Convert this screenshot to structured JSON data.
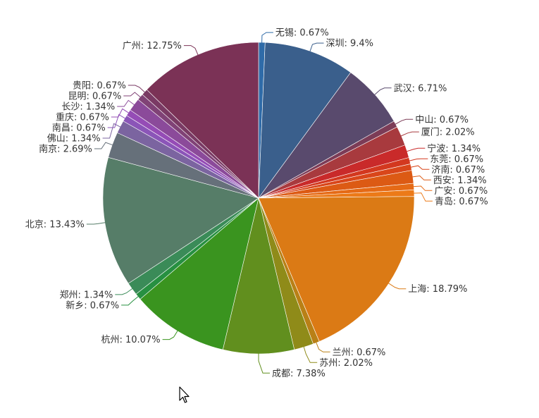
{
  "chart_data": {
    "type": "pie",
    "title": "",
    "start": "top",
    "direction": "clockwise",
    "slices": [
      {
        "name": "无锡",
        "value": 0.67,
        "label": "无锡: 0.67%",
        "color": "#2f6ba8"
      },
      {
        "name": "深圳",
        "value": 9.4,
        "label": "深圳: 9.4%",
        "color": "#3a5f8c"
      },
      {
        "name": "武汉",
        "value": 6.71,
        "label": "武汉: 6.71%",
        "color": "#594a6d"
      },
      {
        "name": "中山",
        "value": 0.67,
        "label": "中山: 0.67%",
        "color": "#7c3c57"
      },
      {
        "name": "厦门",
        "value": 2.02,
        "label": "厦门: 2.02%",
        "color": "#a83a3e"
      },
      {
        "name": "宁波",
        "value": 1.34,
        "label": "宁波: 1.34%",
        "color": "#c92a2a"
      },
      {
        "name": "东莞",
        "value": 0.67,
        "label": "东莞: 0.67%",
        "color": "#d3381f"
      },
      {
        "name": "济南",
        "value": 0.67,
        "label": "济南: 0.67%",
        "color": "#d9461a"
      },
      {
        "name": "西安",
        "value": 1.34,
        "label": "西安: 1.34%",
        "color": "#dc5a14"
      },
      {
        "name": "广安",
        "value": 0.67,
        "label": "广安: 0.67%",
        "color": "#e56a16"
      },
      {
        "name": "青岛",
        "value": 0.67,
        "label": "青岛: 0.67%",
        "color": "#ec7a18"
      },
      {
        "name": "上海",
        "value": 18.79,
        "label": "上海: 18.79%",
        "color": "#db7a15"
      },
      {
        "name": "兰州",
        "value": 0.67,
        "label": "兰州: 0.67%",
        "color": "#b98016"
      },
      {
        "name": "苏州",
        "value": 2.02,
        "label": "苏州: 2.02%",
        "color": "#8f8b19"
      },
      {
        "name": "成都",
        "value": 7.38,
        "label": "成都: 7.38%",
        "color": "#618f1e"
      },
      {
        "name": "杭州",
        "value": 10.07,
        "label": "杭州: 10.07%",
        "color": "#3a941f"
      },
      {
        "name": "新乡",
        "value": 0.67,
        "label": "新乡: 0.67%",
        "color": "#279041"
      },
      {
        "name": "郑州",
        "value": 1.34,
        "label": "郑州: 1.34%",
        "color": "#3a8b58"
      },
      {
        "name": "北京",
        "value": 13.43,
        "label": "北京: 13.43%",
        "color": "#567d68"
      },
      {
        "name": "南京",
        "value": 2.69,
        "label": "南京: 2.69%",
        "color": "#66707a"
      },
      {
        "name": "佛山",
        "value": 1.34,
        "label": "佛山: 1.34%",
        "color": "#7b64a0"
      },
      {
        "name": "南昌",
        "value": 0.67,
        "label": "南昌: 0.67%",
        "color": "#8b55b8"
      },
      {
        "name": "重庆",
        "value": 0.67,
        "label": "重庆: 0.67%",
        "color": "#954cb6"
      },
      {
        "name": "长沙",
        "value": 1.34,
        "label": "长沙: 1.34%",
        "color": "#8b4a9a"
      },
      {
        "name": "昆明",
        "value": 0.67,
        "label": "昆明: 0.67%",
        "color": "#804276"
      },
      {
        "name": "贵阳",
        "value": 0.67,
        "label": "贵阳: 0.67%",
        "color": "#7a3a64"
      },
      {
        "name": "广州",
        "value": 12.75,
        "label": "广州: 12.75%",
        "color": "#7b3256"
      }
    ]
  },
  "cursor_icon": "mouse-pointer-icon"
}
